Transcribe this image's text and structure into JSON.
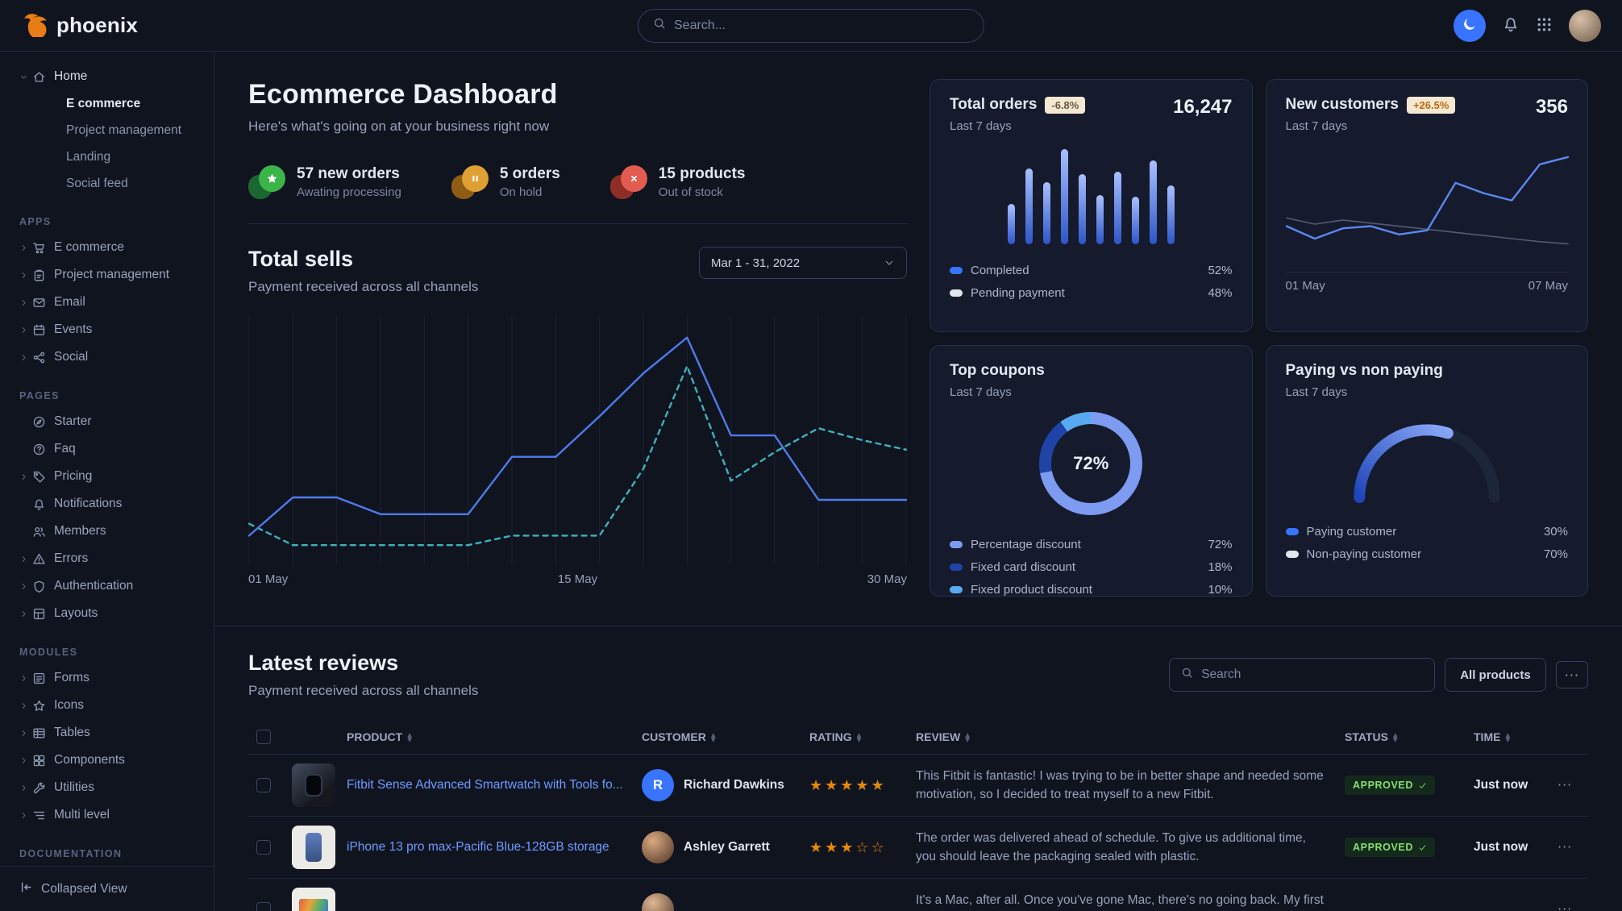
{
  "theme": {
    "primary": "#3874ff"
  },
  "topnav": {
    "brand": "phoenix",
    "search_placeholder": "Search..."
  },
  "sidebar": {
    "sections": [
      {
        "label": "",
        "items": [
          {
            "icon": "home",
            "label": "Home",
            "caret": "down",
            "children": [
              {
                "label": "E commerce",
                "active": true
              },
              {
                "label": "Project management"
              },
              {
                "label": "Landing"
              },
              {
                "label": "Social feed"
              }
            ]
          }
        ]
      },
      {
        "label": "APPS",
        "items": [
          {
            "icon": "cart",
            "label": "E commerce",
            "caret": "right"
          },
          {
            "icon": "clipboard",
            "label": "Project management",
            "caret": "right"
          },
          {
            "icon": "mail",
            "label": "Email",
            "caret": "right"
          },
          {
            "icon": "calendar",
            "label": "Events",
            "caret": "right"
          },
          {
            "icon": "share",
            "label": "Social",
            "caret": "right"
          }
        ]
      },
      {
        "label": "PAGES",
        "items": [
          {
            "icon": "compass",
            "label": "Starter"
          },
          {
            "icon": "help",
            "label": "Faq"
          },
          {
            "icon": "tag",
            "label": "Pricing",
            "caret": "right"
          },
          {
            "icon": "bell",
            "label": "Notifications"
          },
          {
            "icon": "users",
            "label": "Members"
          },
          {
            "icon": "alert",
            "label": "Errors",
            "caret": "right"
          },
          {
            "icon": "shield",
            "label": "Authentication",
            "caret": "right"
          },
          {
            "icon": "layout",
            "label": "Layouts",
            "caret": "right"
          }
        ]
      },
      {
        "label": "MODULES",
        "items": [
          {
            "icon": "form",
            "label": "Forms",
            "caret": "right"
          },
          {
            "icon": "star",
            "label": "Icons",
            "caret": "right"
          },
          {
            "icon": "table",
            "label": "Tables",
            "caret": "right"
          },
          {
            "icon": "box",
            "label": "Components",
            "caret": "right"
          },
          {
            "icon": "tool",
            "label": "Utilities",
            "caret": "right"
          },
          {
            "icon": "list",
            "label": "Multi level",
            "caret": "right"
          }
        ]
      },
      {
        "label": "DOCUMENTATION",
        "items": []
      }
    ],
    "footer": {
      "label": "Collapsed View"
    }
  },
  "page": {
    "title": "Ecommerce Dashboard",
    "subtitle": "Here's what's going on at your business right now"
  },
  "stats": [
    {
      "icon": "star-fill",
      "value": "57 new orders",
      "caption": "Awating processing",
      "color": "#3bb54a",
      "back": "#1e6f34"
    },
    {
      "icon": "pause",
      "value": "5 orders",
      "caption": "On hold",
      "color": "#dfa033",
      "back": "#9c6413"
    },
    {
      "icon": "x",
      "value": "15 products",
      "caption": "Out of stock",
      "color": "#e25c50",
      "back": "#9c3128"
    }
  ],
  "total_sells": {
    "title": "Total sells",
    "subtitle": "Payment received across all channels",
    "date_range": "Mar 1 - 31, 2022",
    "chart_data": {
      "type": "line",
      "x_labels": [
        "01 May",
        "15 May",
        "30 May"
      ],
      "gridlines": 16,
      "series": [
        {
          "name": "current",
          "style": "solid",
          "color": "#4e7bec",
          "values": [
            10,
            26,
            26,
            19,
            19,
            19,
            43,
            43,
            60,
            78,
            93,
            52,
            52,
            25,
            25,
            25
          ]
        },
        {
          "name": "previous",
          "style": "dashed",
          "color": "#3fb1bd",
          "values": [
            15,
            6,
            6,
            6,
            6,
            6,
            10,
            10,
            10,
            38,
            81,
            33,
            45,
            55,
            50,
            46
          ]
        }
      ]
    }
  },
  "cards": {
    "total_orders": {
      "title": "Total orders",
      "badge": "-6.8%",
      "badge_style": {
        "bg": "#f5e8d3",
        "color": "#675b40"
      },
      "period": "Last 7 days",
      "value": "16,247",
      "chart_data": {
        "type": "bar",
        "values": [
          42,
          80,
          65,
          100,
          74,
          52,
          76,
          50,
          88,
          62
        ],
        "color_from": "#2d55c8",
        "color_to": "#a9c0ff"
      },
      "legend": [
        {
          "label": "Completed",
          "value": "52%",
          "color": "#3874ff"
        },
        {
          "label": "Pending payment",
          "value": "48%",
          "color": "#e3e6ed"
        }
      ]
    },
    "new_customers": {
      "title": "New customers",
      "badge": "+26.5%",
      "badge_style": {
        "bg": "#f5e8d3",
        "color": "#bc6a0c"
      },
      "period": "Last 7 days",
      "value": "356",
      "chart_data": {
        "type": "line",
        "x_labels": [
          "01 May",
          "07 May"
        ],
        "series": [
          {
            "name": "current",
            "style": "solid",
            "color": "#5c86f2",
            "values": [
              30,
              18,
              28,
              30,
              22,
              26,
              72,
              62,
              55,
              90,
              97
            ]
          },
          {
            "name": "previous",
            "style": "solid",
            "color": "#515b73",
            "width": 1.6,
            "values": [
              38,
              32,
              36,
              33,
              30,
              27,
              24,
              21,
              18,
              15,
              13
            ]
          }
        ]
      }
    },
    "top_coupons": {
      "title": "Top coupons",
      "period": "Last 7 days",
      "center_label": "72%",
      "chart_data": {
        "type": "pie",
        "segments": [
          {
            "label": "Percentage discount",
            "value": 72,
            "color": "#7e9bf2"
          },
          {
            "label": "Fixed card discount",
            "value": 18,
            "color": "#1f44a8"
          },
          {
            "label": "Fixed product discount",
            "value": 10,
            "color": "#58a9f0"
          }
        ]
      }
    },
    "paying_vs_non_paying": {
      "title": "Paying vs non paying",
      "period": "Last 7 days",
      "chart_data": {
        "type": "gauge",
        "value": 30,
        "color_from": "#1e45b8",
        "color_to": "#87a7f8"
      },
      "legend": [
        {
          "label": "Paying customer",
          "value": "30%",
          "color": "#3874ff"
        },
        {
          "label": "Non-paying customer",
          "value": "70%",
          "color": "#e3e6ed"
        }
      ]
    }
  },
  "reviews": {
    "title": "Latest reviews",
    "subtitle": "Payment received across all channels",
    "search_placeholder": "Search",
    "filter_button": "All products",
    "menu_button": "···",
    "columns": [
      "PRODUCT",
      "CUSTOMER",
      "RATING",
      "REVIEW",
      "STATUS",
      "TIME"
    ],
    "rows": [
      {
        "product": "Fitbit Sense Advanced Smartwatch with Tools fo...",
        "thumb": "watch",
        "customer": "Richard Dawkins",
        "avatar": {
          "kind": "initial",
          "text": "R",
          "bg": "#3874ff"
        },
        "rating": 5,
        "review": "This Fitbit is fantastic! I was trying to be in better shape and needed some motivation, so I decided to treat myself to a new Fitbit.",
        "status": "APPROVED",
        "time": "Just now"
      },
      {
        "product": "iPhone 13 pro max-Pacific Blue-128GB storage",
        "thumb": "phone",
        "customer": "Ashley Garrett",
        "avatar": {
          "kind": "photo",
          "bg": "#d8a97f"
        },
        "rating": 3,
        "review": "The order was delivered ahead of schedule. To give us additional time, you should leave the packaging sealed with plastic.",
        "status": "APPROVED",
        "time": "Just now"
      },
      {
        "product": "",
        "thumb": "mac",
        "customer": "",
        "avatar": {
          "kind": "photo",
          "bg": "#e0b894"
        },
        "rating": null,
        "review": "It's a Mac, after all. Once you've gone Mac, there's no going back. My first Mac lasted",
        "status": "",
        "time": ""
      }
    ]
  }
}
